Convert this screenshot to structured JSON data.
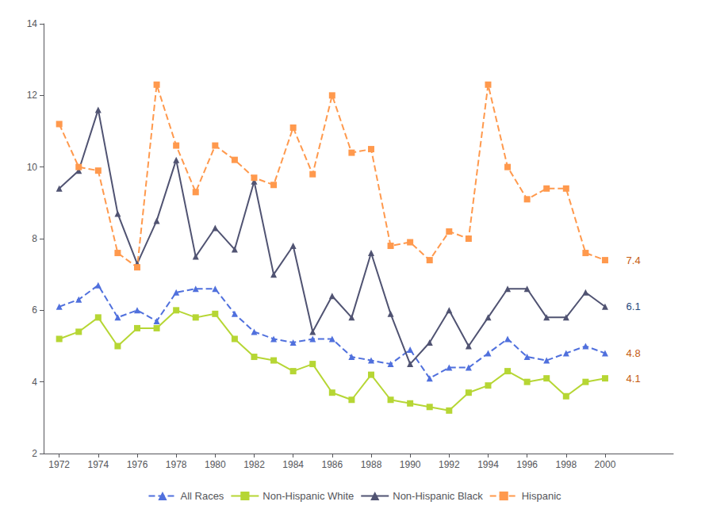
{
  "chart_data": {
    "type": "line",
    "x": [
      1972,
      1973,
      1974,
      1975,
      1976,
      1977,
      1978,
      1979,
      1980,
      1981,
      1982,
      1983,
      1984,
      1985,
      1986,
      1987,
      1988,
      1989,
      1990,
      1991,
      1992,
      1993,
      1994,
      1995,
      1996,
      1997,
      1998,
      1999,
      2000
    ],
    "series": [
      {
        "name": "All Races",
        "marker": "triangle",
        "line_style": "dashed",
        "values": [
          6.1,
          6.3,
          6.7,
          5.8,
          6.0,
          5.7,
          6.5,
          6.6,
          6.6,
          5.9,
          5.4,
          5.2,
          5.1,
          5.2,
          5.2,
          4.7,
          4.6,
          4.5,
          4.9,
          4.1,
          4.4,
          4.4,
          4.8,
          5.2,
          4.7,
          4.6,
          4.8,
          5.0,
          4.8
        ]
      },
      {
        "name": "Non-Hispanic White",
        "marker": "square",
        "line_style": "solid",
        "values": [
          5.2,
          5.4,
          5.8,
          5.0,
          5.5,
          5.5,
          6.0,
          5.8,
          5.9,
          5.2,
          4.7,
          4.6,
          4.3,
          4.5,
          3.7,
          3.5,
          4.2,
          3.5,
          3.4,
          3.3,
          3.2,
          3.7,
          3.9,
          4.3,
          4.0,
          4.1,
          3.6,
          4.0,
          4.1
        ]
      },
      {
        "name": "Non-Hispanic Black",
        "marker": "triangle",
        "line_style": "solid",
        "values": [
          9.4,
          9.9,
          11.6,
          8.7,
          7.3,
          8.5,
          10.2,
          7.5,
          8.3,
          7.7,
          9.6,
          7.0,
          7.8,
          5.4,
          6.4,
          5.8,
          7.6,
          5.9,
          4.5,
          5.1,
          6.0,
          5.0,
          5.8,
          6.6,
          6.6,
          5.8,
          5.8,
          6.5,
          6.1
        ]
      },
      {
        "name": "Hispanic",
        "marker": "square",
        "line_style": "dashed",
        "values": [
          11.2,
          10.0,
          9.9,
          7.6,
          7.2,
          12.3,
          10.6,
          9.3,
          10.6,
          10.2,
          9.7,
          9.5,
          11.1,
          9.8,
          12.0,
          10.4,
          10.5,
          7.8,
          7.9,
          7.4,
          8.2,
          8.0,
          12.3,
          10.0,
          9.1,
          9.4,
          9.4,
          7.6,
          7.4
        ]
      }
    ],
    "annotations": [
      {
        "x": 2001.0,
        "y": 7.4,
        "text": "7.4",
        "color": "#c55a11"
      },
      {
        "x": 2001.0,
        "y": 6.1,
        "text": "6.1",
        "color": "#1f497d"
      },
      {
        "x": 2001.0,
        "y": 4.8,
        "text": "4.8",
        "color": "#c55a11"
      },
      {
        "x": 2001.0,
        "y": 4.1,
        "text": "4.1",
        "color": "#c55a11"
      }
    ],
    "xlim": [
      1971.2,
      2003.5
    ],
    "xticks": [
      1972,
      1974,
      1976,
      1978,
      1980,
      1982,
      1984,
      1986,
      1988,
      1990,
      1992,
      1994,
      1996,
      1998,
      2000
    ],
    "ylim": [
      2,
      14
    ],
    "yticks": [
      2,
      4,
      6,
      8,
      10,
      12,
      14
    ],
    "grid": false,
    "legend": "bottom"
  }
}
